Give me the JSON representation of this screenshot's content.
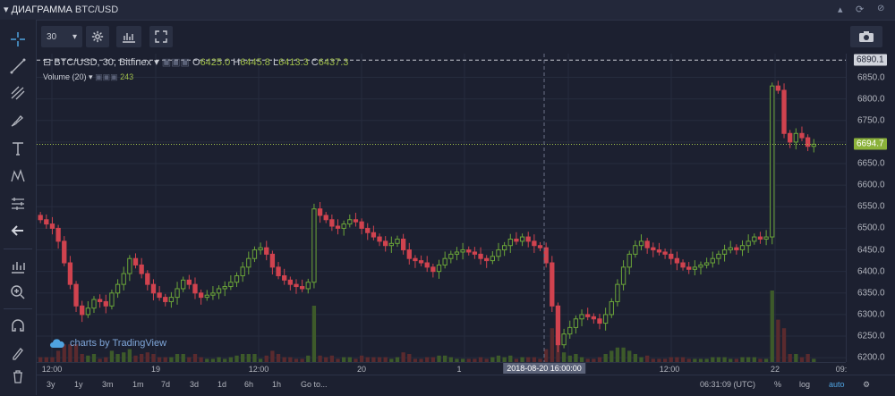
{
  "titlebar": {
    "title": "ДИАГРАММА",
    "symbol": "BTC/USD"
  },
  "toolbar": {
    "interval": "30"
  },
  "legend": {
    "series": "BTC/USD, 30, Bitfinex",
    "open_label": "O",
    "open": "6425.0",
    "high_label": "H",
    "high": "6445.8",
    "low_label": "L",
    "low": "6413.3",
    "close_label": "C",
    "close": "6437.3",
    "volume_label": "Volume (20)",
    "volume_value": "243"
  },
  "watermark": "charts by TradingView",
  "price_axis": {
    "ticks": [
      "6890.1",
      "6850.0",
      "6800.0",
      "6750.0",
      "6694.7",
      "6650.0",
      "6600.0",
      "6550.0",
      "6500.0",
      "6450.0",
      "6400.0",
      "6350.0",
      "6300.0",
      "6250.0",
      "6200.0"
    ],
    "high_label": "6890.1",
    "current_label": "6694.7"
  },
  "time_axis": {
    "ticks": [
      "12:00",
      "19",
      "12:00",
      "20",
      "1",
      "21",
      "12:00",
      "22",
      "09:"
    ],
    "crosshair": "2018-08-20 16:00:00"
  },
  "bottom_bar": {
    "ranges": [
      "3y",
      "1y",
      "3m",
      "1m",
      "7d",
      "3d",
      "1d",
      "6h",
      "1h"
    ],
    "goto": "Go to...",
    "clock": "06:31:09 (UTC)",
    "percent": "%",
    "log": "log",
    "auto": "auto"
  },
  "colors": {
    "up": "#6ba539",
    "down": "#d0434f",
    "accent": "#4fa3e0"
  },
  "chart_data": {
    "type": "candlestick",
    "title": "BTC/USD, 30, Bitfinex",
    "ylim": [
      6190,
      6905
    ],
    "x_start": "2018-08-18 09:00",
    "interval_minutes": 30,
    "close": [
      6520,
      6510,
      6500,
      6470,
      6420,
      6370,
      6320,
      6300,
      6315,
      6335,
      6330,
      6320,
      6350,
      6370,
      6395,
      6430,
      6415,
      6395,
      6370,
      6350,
      6340,
      6330,
      6340,
      6360,
      6380,
      6370,
      6350,
      6340,
      6345,
      6350,
      6360,
      6365,
      6375,
      6390,
      6410,
      6430,
      6450,
      6455,
      6440,
      6410,
      6390,
      6380,
      6370,
      6365,
      6360,
      6375,
      6545,
      6530,
      6520,
      6505,
      6500,
      6510,
      6520,
      6515,
      6500,
      6490,
      6480,
      6470,
      6460,
      6465,
      6475,
      6450,
      6430,
      6425,
      6420,
      6410,
      6400,
      6415,
      6430,
      6440,
      6445,
      6450,
      6445,
      6440,
      6430,
      6425,
      6435,
      6450,
      6460,
      6475,
      6470,
      6480,
      6470,
      6460,
      6455,
      6420,
      6320,
      6230,
      6255,
      6270,
      6290,
      6300,
      6295,
      6290,
      6280,
      6300,
      6330,
      6370,
      6410,
      6440,
      6460,
      6470,
      6455,
      6450,
      6445,
      6440,
      6430,
      6420,
      6410,
      6405,
      6410,
      6415,
      6420,
      6430,
      6440,
      6450,
      6455,
      6450,
      6460,
      6470,
      6480,
      6475,
      6480,
      6830,
      6820,
      6720,
      6700,
      6720,
      6710,
      6690,
      6695
    ]
  }
}
